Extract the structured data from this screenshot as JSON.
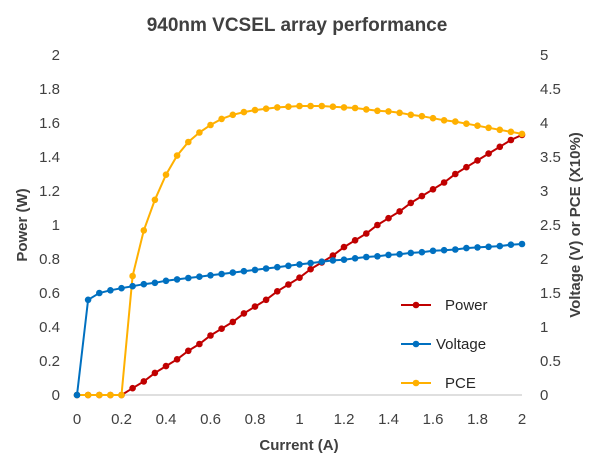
{
  "chart_data": {
    "type": "line",
    "title": "940nm VCSEL array performance",
    "xlabel": "Current (A)",
    "ylabel_left": "Power (W)",
    "ylabel_right": "Voltage (V) or PCE (X10%)",
    "xlim": [
      0,
      2
    ],
    "ylim_left": [
      0,
      2
    ],
    "ylim_right": [
      0,
      5
    ],
    "x_ticks": [
      "0",
      "0.2",
      "0.4",
      "0.6",
      "0.8",
      "1",
      "1.2",
      "1.4",
      "1.6",
      "1.8",
      "2"
    ],
    "y_left_ticks": [
      "0",
      "0.2",
      "0.4",
      "0.6",
      "0.8",
      "1",
      "1.2",
      "1.4",
      "1.6",
      "1.8",
      "2"
    ],
    "y_right_ticks": [
      "0",
      "0.5",
      "1",
      "1.5",
      "2",
      "2.5",
      "3",
      "3.5",
      "4",
      "4.5",
      "5"
    ],
    "grid": false,
    "legend_position": "bottom-right",
    "series": [
      {
        "name": "Power",
        "axis": "left",
        "color": "#C00000",
        "points": [
          [
            0,
            0
          ],
          [
            0.05,
            0
          ],
          [
            0.1,
            0
          ],
          [
            0.15,
            0
          ],
          [
            0.2,
            0
          ],
          [
            0.25,
            0.04
          ],
          [
            0.3,
            0.08
          ],
          [
            0.35,
            0.13
          ],
          [
            0.4,
            0.17
          ],
          [
            0.45,
            0.21
          ],
          [
            0.5,
            0.26
          ],
          [
            0.55,
            0.3
          ],
          [
            0.6,
            0.35
          ],
          [
            0.65,
            0.39
          ],
          [
            0.7,
            0.43
          ],
          [
            0.75,
            0.48
          ],
          [
            0.8,
            0.52
          ],
          [
            0.85,
            0.56
          ],
          [
            0.9,
            0.61
          ],
          [
            0.95,
            0.65
          ],
          [
            1.0,
            0.69
          ],
          [
            1.05,
            0.74
          ],
          [
            1.1,
            0.78
          ],
          [
            1.15,
            0.82
          ],
          [
            1.2,
            0.87
          ],
          [
            1.25,
            0.91
          ],
          [
            1.3,
            0.95
          ],
          [
            1.35,
            1.0
          ],
          [
            1.4,
            1.04
          ],
          [
            1.45,
            1.08
          ],
          [
            1.5,
            1.13
          ],
          [
            1.55,
            1.17
          ],
          [
            1.6,
            1.21
          ],
          [
            1.65,
            1.25
          ],
          [
            1.7,
            1.3
          ],
          [
            1.75,
            1.34
          ],
          [
            1.8,
            1.38
          ],
          [
            1.85,
            1.42
          ],
          [
            1.9,
            1.46
          ],
          [
            1.95,
            1.5
          ],
          [
            2.0,
            1.53
          ]
        ]
      },
      {
        "name": "Voltage",
        "axis": "right",
        "color": "#0070C0",
        "points": [
          [
            0,
            0
          ],
          [
            0.05,
            1.4
          ],
          [
            0.1,
            1.5
          ],
          [
            0.15,
            1.54
          ],
          [
            0.2,
            1.57
          ],
          [
            0.25,
            1.6
          ],
          [
            0.3,
            1.63
          ],
          [
            0.35,
            1.65
          ],
          [
            0.4,
            1.68
          ],
          [
            0.45,
            1.7
          ],
          [
            0.5,
            1.72
          ],
          [
            0.55,
            1.74
          ],
          [
            0.6,
            1.76
          ],
          [
            0.65,
            1.78
          ],
          [
            0.7,
            1.8
          ],
          [
            0.75,
            1.82
          ],
          [
            0.8,
            1.84
          ],
          [
            0.85,
            1.86
          ],
          [
            0.9,
            1.88
          ],
          [
            0.95,
            1.9
          ],
          [
            1.0,
            1.92
          ],
          [
            1.05,
            1.94
          ],
          [
            1.1,
            1.96
          ],
          [
            1.15,
            1.98
          ],
          [
            1.2,
            1.99
          ],
          [
            1.25,
            2.01
          ],
          [
            1.3,
            2.03
          ],
          [
            1.35,
            2.04
          ],
          [
            1.4,
            2.06
          ],
          [
            1.45,
            2.07
          ],
          [
            1.5,
            2.09
          ],
          [
            1.55,
            2.1
          ],
          [
            1.6,
            2.12
          ],
          [
            1.65,
            2.13
          ],
          [
            1.7,
            2.14
          ],
          [
            1.75,
            2.16
          ],
          [
            1.8,
            2.17
          ],
          [
            1.85,
            2.18
          ],
          [
            1.9,
            2.19
          ],
          [
            1.95,
            2.21
          ],
          [
            2.0,
            2.22
          ]
        ]
      },
      {
        "name": "PCE",
        "axis": "right",
        "color": "#FFB000",
        "points": [
          [
            0,
            0
          ],
          [
            0.05,
            0
          ],
          [
            0.1,
            0
          ],
          [
            0.15,
            0
          ],
          [
            0.2,
            0
          ],
          [
            0.25,
            1.75
          ],
          [
            0.3,
            2.42
          ],
          [
            0.35,
            2.87
          ],
          [
            0.4,
            3.24
          ],
          [
            0.45,
            3.52
          ],
          [
            0.5,
            3.72
          ],
          [
            0.55,
            3.86
          ],
          [
            0.6,
            3.97
          ],
          [
            0.65,
            4.06
          ],
          [
            0.7,
            4.12
          ],
          [
            0.75,
            4.16
          ],
          [
            0.8,
            4.19
          ],
          [
            0.85,
            4.21
          ],
          [
            0.9,
            4.23
          ],
          [
            0.95,
            4.24
          ],
          [
            1.0,
            4.25
          ],
          [
            1.05,
            4.25
          ],
          [
            1.1,
            4.25
          ],
          [
            1.15,
            4.24
          ],
          [
            1.2,
            4.23
          ],
          [
            1.25,
            4.22
          ],
          [
            1.3,
            4.2
          ],
          [
            1.35,
            4.18
          ],
          [
            1.4,
            4.17
          ],
          [
            1.45,
            4.15
          ],
          [
            1.5,
            4.12
          ],
          [
            1.55,
            4.1
          ],
          [
            1.6,
            4.07
          ],
          [
            1.65,
            4.04
          ],
          [
            1.7,
            4.02
          ],
          [
            1.75,
            3.99
          ],
          [
            1.8,
            3.96
          ],
          [
            1.85,
            3.93
          ],
          [
            1.9,
            3.9
          ],
          [
            1.95,
            3.87
          ],
          [
            2.0,
            3.84
          ]
        ]
      }
    ]
  }
}
